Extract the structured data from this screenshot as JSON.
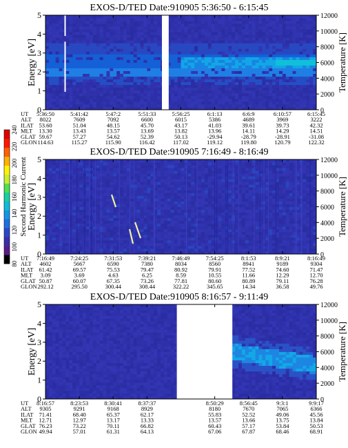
{
  "colorbar": {
    "label": "Second Harmonic Current",
    "ticks": [
      "80",
      "100",
      "120",
      "140",
      "160",
      "180",
      "200",
      "220",
      "240"
    ],
    "colors": [
      "#000000",
      "#5a1a8c",
      "#3b2ea6",
      "#2d46c8",
      "#1e6fe0",
      "#1296e6",
      "#10bcd8",
      "#18d0a0",
      "#50e050",
      "#c8ee30",
      "#fff200",
      "#ffb000",
      "#ff6000",
      "#ff1800",
      "#e00000"
    ]
  },
  "chart_data": [
    {
      "type": "heatmap",
      "title": "EXOS-D/TED",
      "date": "Date:910905",
      "time_range": "5:36:50 - 6:15:45",
      "ylabel": "Energy [eV]",
      "ylabel_right": "Temperature [K]",
      "ylim": [
        0,
        5
      ],
      "y2lim": [
        0,
        12000
      ],
      "yticks": [
        "0",
        "1",
        "2",
        "3",
        "4",
        "5"
      ],
      "y2ticks": [
        "0",
        "2000",
        "4000",
        "6000",
        "8000",
        "10000",
        "12000"
      ],
      "x_ticks": [
        "5:36:50",
        "5:41:42",
        "5:47:2",
        "5:51:33",
        "5:56:25",
        "6:1:13",
        "6:6:9",
        "6:10:57",
        "6:15:45"
      ],
      "data_gaps": [
        [
          0.07,
          0.075,
          "partial"
        ],
        [
          0.43,
          0.455,
          "full"
        ]
      ],
      "table": [
        {
          "name": "UT",
          "values": [
            "5:36:50",
            "5:41:42",
            "5:47:2",
            "5:51:33",
            "5:56:25",
            "6:1:13",
            "6:6:9",
            "6:10:57",
            "6:15:45"
          ]
        },
        {
          "name": "ALT",
          "values": [
            "8022",
            "7609",
            "7092",
            "6600",
            "6015",
            "5386",
            "4689",
            "3969",
            "3222"
          ]
        },
        {
          "name": "ILAT",
          "values": [
            "53.60",
            "51.04",
            "48.15",
            "45.70",
            "43.17",
            "41.03",
            "39.61",
            "39.73",
            "42.32"
          ]
        },
        {
          "name": "MLT",
          "values": [
            "13.30",
            "13.43",
            "13.57",
            "13.69",
            "13.82",
            "13.96",
            "14.11",
            "14.29",
            "14.51"
          ]
        },
        {
          "name": "GLAT",
          "values": [
            "59.67",
            "57.27",
            "54.62",
            "52.39",
            "50.13",
            "-29.94",
            "-28.79",
            "-28.91",
            "-31.08"
          ]
        },
        {
          "name": "GLON",
          "values": [
            "114.63",
            "115.27",
            "115.90",
            "116.42",
            "117.02",
            "119.12",
            "119.80",
            "120.79",
            "122.32"
          ]
        }
      ]
    },
    {
      "type": "heatmap",
      "title": "EXOS-D/TED",
      "date": "Date:910905",
      "time_range": "7:16:49 - 8:16:49",
      "ylabel": "Energy [eV]",
      "ylabel_right": "Temperature [K]",
      "ylim": [
        0,
        5
      ],
      "y2lim": [
        0,
        12000
      ],
      "yticks": [
        "0",
        "1",
        "2",
        "3",
        "4",
        "5"
      ],
      "y2ticks": [
        "0",
        "2000",
        "4000",
        "6000",
        "8000",
        "10000",
        "12000"
      ],
      "x_ticks": [
        "7:16:49",
        "7:24:25",
        "7:31:53",
        "7:39:21",
        "7:46:49",
        "7:54:25",
        "8:1:53",
        "8:9:21",
        "8:16:49"
      ],
      "data_gaps": [],
      "table": [
        {
          "name": "UT",
          "values": [
            "7:16:49",
            "7:24:25",
            "7:31:53",
            "7:39:21",
            "7:46:49",
            "7:54:25",
            "8:1:53",
            "8:9:21",
            "8:16:49"
          ]
        },
        {
          "name": "ALT",
          "values": [
            "4602",
            "5667",
            "6590",
            "7380",
            "8034",
            "8560",
            "8941",
            "9189",
            "9304"
          ]
        },
        {
          "name": "ILAT",
          "values": [
            "61.42",
            "69.57",
            "75.53",
            "79.47",
            "80.92",
            "79.91",
            "77.52",
            "74.60",
            "71.47"
          ]
        },
        {
          "name": "MLT",
          "values": [
            "3.09",
            "3.69",
            "4.63",
            "6.25",
            "8.59",
            "10.55",
            "11.66",
            "12.29",
            "12.70"
          ]
        },
        {
          "name": "GLAT",
          "values": [
            "50.87",
            "60.07",
            "67.35",
            "73.26",
            "77.81",
            "80.60",
            "80.89",
            "79.11",
            "76.28"
          ]
        },
        {
          "name": "GLON",
          "values": [
            "292.12",
            "295.50",
            "300.44",
            "308.44",
            "322.22",
            "345.65",
            "14.34",
            "36.58",
            "49.76"
          ]
        }
      ]
    },
    {
      "type": "heatmap",
      "title": "EXOS-D/TED",
      "date": "Date:910905",
      "time_range": "8:16:57 - 9:11:49",
      "ylabel": "Energy [eV]",
      "ylabel_right": "Temperature [K]",
      "ylim": [
        0,
        5
      ],
      "y2lim": [
        0,
        12000
      ],
      "yticks": [
        "0",
        "1",
        "2",
        "3",
        "4",
        "5"
      ],
      "y2ticks": [
        "0",
        "2000",
        "4000",
        "6000",
        "8000",
        "10000",
        "12000"
      ],
      "x_ticks": [
        "8:16:57",
        "8:23:53",
        "8:30:41",
        "8:37:37",
        "",
        "8:50:29",
        "8:56:45",
        "9:3:1",
        "9:9:17"
      ],
      "data_gaps": [
        [
          0.485,
          0.69,
          "full"
        ]
      ],
      "table": [
        {
          "name": "UT",
          "values": [
            "8:16:57",
            "8:23:53",
            "8:30:41",
            "8:37:37",
            "",
            "8:50:29",
            "8:56:45",
            "9:3:1",
            "9:9:17"
          ]
        },
        {
          "name": "ALT",
          "values": [
            "9305",
            "9291",
            "9168",
            "8929",
            "",
            "8180",
            "7670",
            "7065",
            "6366"
          ]
        },
        {
          "name": "ILAT",
          "values": [
            "71.41",
            "68.40",
            "65.37",
            "62.17",
            "",
            "55.83",
            "52.52",
            "49.06",
            "45.56"
          ]
        },
        {
          "name": "MLT",
          "values": [
            "12.71",
            "12.97",
            "13.17",
            "13.33",
            "",
            "13.57",
            "13.66",
            "13.75",
            "13.84"
          ]
        },
        {
          "name": "GLAT",
          "values": [
            "76.23",
            "73.22",
            "70.11",
            "66.82",
            "",
            "60.43",
            "57.17",
            "53.84",
            "50.53"
          ]
        },
        {
          "name": "GLON",
          "values": [
            "49.94",
            "57.01",
            "61.31",
            "64.13",
            "",
            "67.06",
            "67.87",
            "68.46",
            "68.91"
          ]
        }
      ]
    }
  ]
}
